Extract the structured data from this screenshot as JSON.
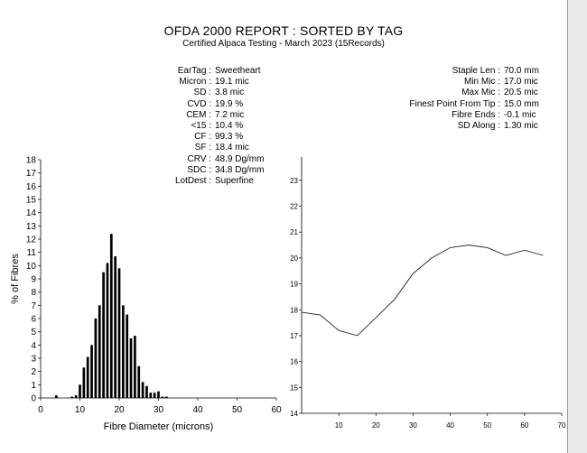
{
  "report": {
    "title": "OFDA 2000 REPORT : SORTED BY TAG",
    "subtitle": "Certified Alpaca Testing - March 2023 (15Records)"
  },
  "left_stats": [
    {
      "label": "EarTag",
      "value": "Sweetheart"
    },
    {
      "label": "Micron",
      "value": "19.1 mic"
    },
    {
      "label": "SD",
      "value": "3.8 mic"
    },
    {
      "label": "CVD",
      "value": "19.9 %"
    },
    {
      "label": "CEM",
      "value": "7.2 mic"
    },
    {
      "label": "<15",
      "value": "10.4 %"
    },
    {
      "label": "CF",
      "value": "99.3 %"
    },
    {
      "label": "SF",
      "value": "18.4 mic"
    },
    {
      "label": "CRV",
      "value": "48.9 Dg/mm"
    },
    {
      "label": "SDC",
      "value": "34.8 Dg/mm"
    },
    {
      "label": "LotDest",
      "value": "Superfine"
    }
  ],
  "right_stats": [
    {
      "label": "Staple Len",
      "value": "70.0 mm"
    },
    {
      "label": "Min Mic",
      "value": "17.0 mic"
    },
    {
      "label": "Max Mic",
      "value": "20.5 mic"
    },
    {
      "label": "Finest Point From Tip",
      "value": "15.0 mm"
    },
    {
      "label": "Fibre Ends",
      "value": "-0.1 mic"
    },
    {
      "label": "SD Along",
      "value": "1.30 mic"
    }
  ],
  "chart_data": [
    {
      "type": "bar",
      "title": "",
      "xlabel": "Fibre Diameter (microns)",
      "ylabel": "% of Fibres",
      "xlim": [
        0,
        60
      ],
      "ylim": [
        0,
        18
      ],
      "xticks": [
        0,
        10,
        20,
        30,
        40,
        50,
        60
      ],
      "yticks": [
        0,
        1,
        2,
        3,
        4,
        5,
        6,
        7,
        8,
        9,
        10,
        11,
        12,
        13,
        14,
        15,
        16,
        17,
        18
      ],
      "x": [
        4,
        8,
        9,
        10,
        11,
        12,
        13,
        14,
        15,
        16,
        17,
        18,
        19,
        20,
        21,
        22,
        23,
        24,
        25,
        26,
        27,
        28,
        29,
        30,
        31,
        32
      ],
      "values": [
        0.2,
        0.1,
        0.2,
        1.0,
        2.3,
        3.1,
        4.0,
        6.0,
        7.0,
        9.5,
        10.2,
        12.4,
        10.7,
        9.8,
        7.0,
        6.3,
        4.5,
        4.7,
        2.4,
        1.2,
        0.9,
        0.4,
        0.4,
        0.5,
        0.1,
        0.1
      ],
      "grid": false
    },
    {
      "type": "line",
      "title": "",
      "xlim": [
        0,
        70
      ],
      "ylim": [
        14,
        23.9
      ],
      "xticks": [
        10,
        20,
        30,
        40,
        50,
        60,
        70
      ],
      "yticks": [
        14,
        15,
        16,
        17,
        18,
        19,
        20,
        21,
        22,
        23
      ],
      "x": [
        0,
        5,
        10,
        15,
        20,
        25,
        30,
        35,
        40,
        45,
        50,
        55,
        60,
        65
      ],
      "values": [
        17.9,
        17.8,
        17.2,
        17.0,
        17.7,
        18.4,
        19.4,
        20.0,
        20.4,
        20.5,
        20.4,
        20.1,
        20.3,
        20.1
      ],
      "grid": false
    }
  ]
}
